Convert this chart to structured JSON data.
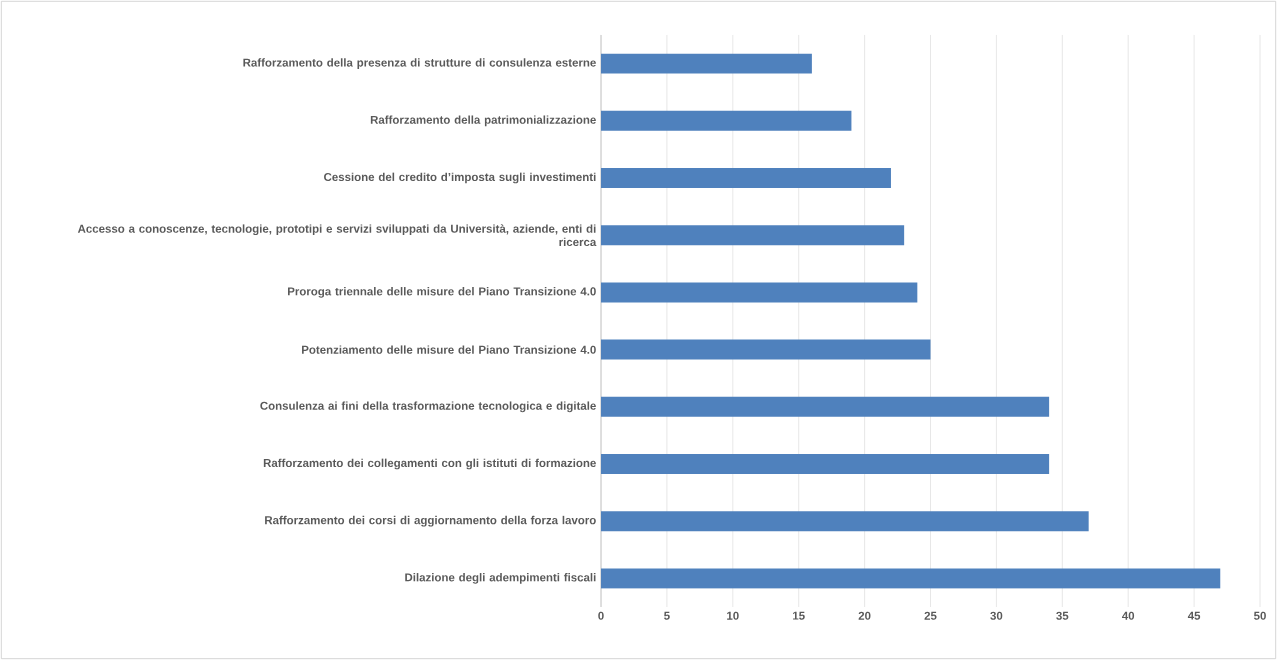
{
  "chart_data": {
    "type": "bar",
    "orientation": "horizontal",
    "categories": [
      "Rafforzamento della presenza di strutture di consulenza esterne",
      "Rafforzamento della patrimonializzazione",
      "Cessione del credito d’imposta sugli investimenti",
      "Accesso a conoscenze, tecnologie, prototipi e servizi sviluppati da Università, aziende, enti di ricerca",
      "Proroga triennale delle misure del Piano Transizione 4.0",
      "Potenziamento delle misure del Piano Transizione 4.0",
      "Consulenza ai fini della trasformazione tecnologica e digitale",
      "Rafforzamento dei collegamenti con gli istituti di formazione",
      "Rafforzamento dei corsi di aggiornamento della forza lavoro",
      "Dilazione degli adempimenti fiscali"
    ],
    "values": [
      16,
      19,
      22,
      23,
      24,
      25,
      34,
      34,
      37,
      47
    ],
    "color": "#4f81bd",
    "xlim": [
      0,
      50
    ],
    "xticks": [
      0,
      5,
      10,
      15,
      20,
      25,
      30,
      35,
      40,
      45,
      50
    ],
    "grid": "x"
  }
}
